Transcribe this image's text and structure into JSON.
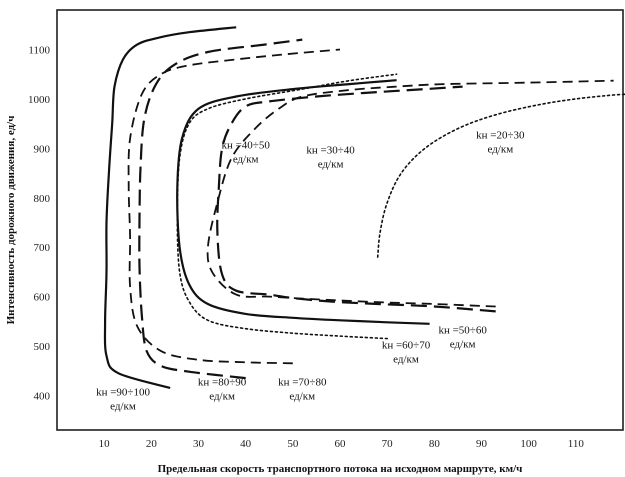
{
  "chart_data": {
    "type": "line",
    "title": "",
    "xlabel": "Предельная скорость транспортного потока на исходном маршруте, км/ч",
    "ylabel": "Интенсивность дорожного движения, ед/ч",
    "xlim": [
      0,
      120
    ],
    "ylim": [
      330,
      1180
    ],
    "xticks": [
      "10",
      "20",
      "30",
      "40",
      "50",
      "60",
      "70",
      "80",
      "90",
      "100",
      "110"
    ],
    "yticks": [
      "400",
      "500",
      "600",
      "700",
      "800",
      "900",
      "1000",
      "1100"
    ],
    "grid": false,
    "series": [
      {
        "name": "kн =90÷100 ед/км",
        "style": "solid",
        "x": [
          24,
          13,
          10.5,
          10.2,
          10.5,
          10.5,
          11,
          11.7,
          12.2,
          14,
          17,
          22,
          28,
          38
        ],
        "y": [
          415,
          445,
          480,
          550,
          650,
          750,
          850,
          950,
          1025,
          1080,
          1110,
          1125,
          1135,
          1145
        ]
      },
      {
        "name": "kн =80÷90 ед/км",
        "style": "longdash",
        "x": [
          40,
          28,
          22,
          19,
          18,
          17.5,
          17.5,
          17.7,
          18.5,
          21,
          25,
          32,
          44,
          52
        ],
        "y": [
          435,
          448,
          460,
          490,
          560,
          660,
          760,
          860,
          960,
          1030,
          1070,
          1095,
          1110,
          1120
        ]
      },
      {
        "name": "kн =70÷80 ед/км",
        "style": "dash",
        "x": [
          50,
          40,
          30,
          22,
          17,
          15.5,
          15.5,
          15.2,
          15.5,
          18,
          22,
          28,
          38,
          48,
          60
        ],
        "y": [
          465,
          467,
          472,
          490,
          540,
          620,
          720,
          820,
          920,
          1010,
          1050,
          1068,
          1080,
          1090,
          1100
        ]
      },
      {
        "name": "kн =60÷70 ед/км",
        "style": "dot",
        "x": [
          70,
          60,
          50,
          40,
          32,
          28,
          26,
          25.5,
          26,
          28,
          32,
          40,
          52,
          62,
          72
        ],
        "y": [
          515,
          520,
          526,
          535,
          552,
          590,
          650,
          760,
          880,
          950,
          980,
          1000,
          1020,
          1037,
          1050
        ]
      },
      {
        "name": "kн =50÷60 ед/км",
        "style": "solid",
        "x": [
          79,
          70,
          60,
          50,
          40,
          32,
          28,
          26,
          25.5,
          26.5,
          30,
          38,
          50,
          62,
          72
        ],
        "y": [
          545,
          548,
          552,
          557,
          565,
          585,
          625,
          700,
          820,
          920,
          980,
          1005,
          1020,
          1030,
          1038
        ]
      },
      {
        "name": "kн =40÷50 ед/км",
        "style": "longdash",
        "x": [
          93,
          80,
          68,
          58,
          50,
          45,
          38,
          35,
          34,
          34.3,
          35,
          37,
          40,
          45,
          55,
          65,
          75,
          86
        ],
        "y": [
          570,
          580,
          585,
          590,
          597,
          604,
          612,
          645,
          730,
          820,
          900,
          950,
          985,
          995,
          1005,
          1012,
          1018,
          1025
        ]
      },
      {
        "name": "kн =30÷40 ед/км",
        "style": "dash",
        "x": [
          93,
          80,
          70,
          60,
          52,
          45,
          38,
          33,
          32,
          34,
          37,
          42,
          47,
          52,
          62,
          72,
          82,
          100,
          118
        ],
        "y": [
          580,
          585,
          588,
          592,
          596,
          600,
          604,
          648,
          700,
          790,
          880,
          940,
          980,
          1005,
          1018,
          1025,
          1030,
          1033,
          1037
        ]
      },
      {
        "name": "kн =20÷30 ед/км",
        "style": "dot",
        "x": [
          68,
          68.5,
          70,
          73,
          78,
          85,
          93,
          102,
          110,
          118,
          122
        ],
        "y": [
          680,
          730,
          790,
          850,
          900,
          940,
          968,
          988,
          1000,
          1008,
          1010
        ]
      }
    ],
    "annotations": [
      {
        "kh": "kн =90÷100",
        "unit": "ед/км",
        "at": [
          14,
          400
        ]
      },
      {
        "kh": "kн =80÷90",
        "unit": "ед/км",
        "at": [
          35,
          420
        ]
      },
      {
        "kh": "kн =70÷80",
        "unit": "ед/км",
        "at": [
          52,
          420
        ]
      },
      {
        "kh": "kн =60÷70",
        "unit": "ед/км",
        "at": [
          74,
          495
        ]
      },
      {
        "kh": "kн =50÷60",
        "unit": "ед/км",
        "at": [
          86,
          525
        ]
      },
      {
        "kh": "kн =40÷50",
        "unit": "ед/км",
        "at": [
          40,
          900
        ]
      },
      {
        "kh": "kн =30÷40",
        "unit": "ед/км",
        "at": [
          58,
          890
        ]
      },
      {
        "kh": "kн =20÷30",
        "unit": "ед/км",
        "at": [
          94,
          920
        ]
      }
    ]
  }
}
